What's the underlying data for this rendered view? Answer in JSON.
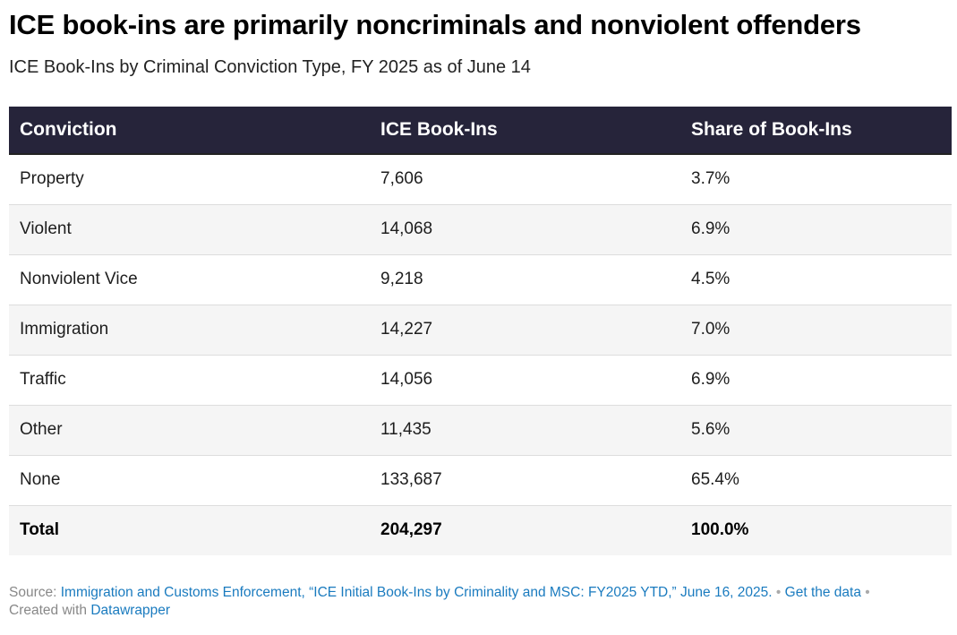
{
  "header": {
    "title": "ICE book-ins are primarily noncriminals and nonviolent offenders",
    "subtitle": "ICE Book-Ins by Criminal Conviction Type, FY 2025 as of June 14"
  },
  "chart_data": {
    "type": "table",
    "columns": [
      "Conviction",
      "ICE Book-Ins",
      "Share of Book-Ins"
    ],
    "rows": [
      [
        "Property",
        "7,606",
        "3.7%"
      ],
      [
        "Violent",
        "14,068",
        "6.9%"
      ],
      [
        "Nonviolent Vice",
        "9,218",
        "4.5%"
      ],
      [
        "Immigration",
        "14,227",
        "7.0%"
      ],
      [
        "Traffic",
        "14,056",
        "6.9%"
      ],
      [
        "Other",
        "11,435",
        "5.6%"
      ],
      [
        "None",
        "133,687",
        "65.4%"
      ]
    ],
    "total": [
      "Total",
      "204,297",
      "100.0%"
    ]
  },
  "footer": {
    "source_label": "Source:",
    "source_link": "Immigration and Customs Enforcement, “ICE Initial Book-Ins by Criminality and MSC: FY2025 YTD,” June 16, 2025.",
    "separator": "•",
    "get_data": "Get the data",
    "created_with": "Created with",
    "tool": "Datawrapper"
  },
  "colors": {
    "header_bg": "#26243a",
    "link": "#1a7bbf"
  }
}
